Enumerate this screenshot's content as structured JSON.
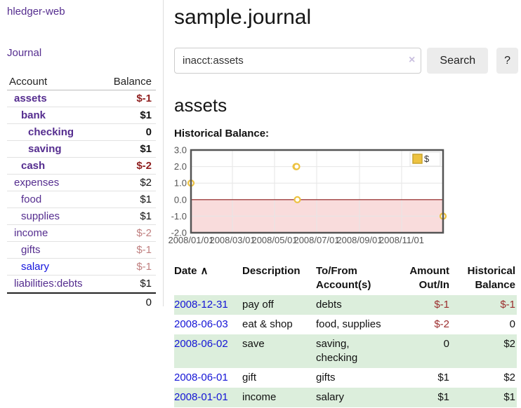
{
  "sidebar": {
    "app_title": "hledger-web",
    "journal_label": "Journal",
    "accounts_table": {
      "headers": {
        "account": "Account",
        "balance": "Balance"
      },
      "rows": [
        {
          "name": "assets",
          "balance": "$-1",
          "level": 1,
          "bold": true,
          "balance_style": "neg-dark",
          "link": "purple"
        },
        {
          "name": "bank",
          "balance": "$1",
          "level": 2,
          "bold": true,
          "balance_style": "pos",
          "link": "purple"
        },
        {
          "name": "checking",
          "balance": "0",
          "level": 3,
          "bold": true,
          "balance_style": "pos",
          "link": "purple"
        },
        {
          "name": "saving",
          "balance": "$1",
          "level": 3,
          "bold": true,
          "balance_style": "pos",
          "link": "purple"
        },
        {
          "name": "cash",
          "balance": "$-2",
          "level": 2,
          "bold": true,
          "balance_style": "neg-dark",
          "link": "purple"
        },
        {
          "name": "expenses",
          "balance": "$2",
          "level": 1,
          "bold": false,
          "balance_style": "pos",
          "link": "purple"
        },
        {
          "name": "food",
          "balance": "$1",
          "level": 2,
          "bold": false,
          "balance_style": "pos",
          "link": "purple"
        },
        {
          "name": "supplies",
          "balance": "$1",
          "level": 2,
          "bold": false,
          "balance_style": "pos",
          "link": "purple"
        },
        {
          "name": "income",
          "balance": "$-2",
          "level": 1,
          "bold": false,
          "balance_style": "neg-light",
          "link": "purple"
        },
        {
          "name": "gifts",
          "balance": "$-1",
          "level": 2,
          "bold": false,
          "balance_style": "neg-light",
          "link": "purple"
        },
        {
          "name": "salary",
          "balance": "$-1",
          "level": 2,
          "bold": false,
          "balance_style": "neg-light",
          "link": "blue"
        },
        {
          "name": "liabilities:debts",
          "balance": "$1",
          "level": 1,
          "bold": false,
          "balance_style": "pos",
          "link": "purple"
        }
      ],
      "total": "0"
    }
  },
  "main": {
    "title": "sample.journal",
    "search": {
      "value": "inacct:assets",
      "clear_icon": "×",
      "button_label": "Search",
      "help_label": "?"
    },
    "account_heading": "assets",
    "chart_heading": "Historical Balance:"
  },
  "chart_data": {
    "type": "line",
    "step": true,
    "title": "Historical Balance:",
    "legend": "$",
    "legend_position": "top-right",
    "grid": true,
    "ylim": [
      -2,
      3
    ],
    "x_range": [
      "2008-01-01",
      "2008-12-31"
    ],
    "y_ticks": [
      "3.0",
      "2.0",
      "1.0",
      "0.0",
      "-1.0",
      "-2.0"
    ],
    "x_ticks": [
      "2008/01/01",
      "2008/03/01",
      "2008/05/01",
      "2008/07/01",
      "2008/09/01",
      "2008/11/01"
    ],
    "series": [
      {
        "name": "$",
        "points": [
          [
            "2008-01-01",
            1
          ],
          [
            "2008-06-01",
            2
          ],
          [
            "2008-06-02",
            2
          ],
          [
            "2008-06-03",
            0
          ],
          [
            "2008-12-31",
            -1
          ]
        ]
      }
    ],
    "colors": {
      "line": "#edc240",
      "marker_fill": "#ffffff",
      "negative_region": "#f9dcdc",
      "zero_line": "#8b1a1a",
      "grid": "#e6e6e6",
      "border": "#545454",
      "tick_text": "#545454",
      "legend_box_border": "#e2e2e2",
      "legend_swatch_border": "#c9a42e"
    }
  },
  "register_table": {
    "headers": {
      "date": "Date",
      "sort_icon": "∧",
      "description": "Description",
      "accounts": "To/From Account(s)",
      "amount": "Amount Out/In",
      "balance": "Historical Balance"
    },
    "rows": [
      {
        "date": "2008-12-31",
        "description": "pay off",
        "accounts": "debts",
        "amount": "$-1",
        "balance": "$-1",
        "shaded": true
      },
      {
        "date": "2008-06-03",
        "description": "eat & shop",
        "accounts": "food, supplies",
        "amount": "$-2",
        "balance": "0",
        "shaded": false
      },
      {
        "date": "2008-06-02",
        "description": "save",
        "accounts": "saving, checking",
        "amount": "0",
        "balance": "$2",
        "shaded": true
      },
      {
        "date": "2008-06-01",
        "description": "gift",
        "accounts": "gifts",
        "amount": "$1",
        "balance": "$2",
        "shaded": false
      },
      {
        "date": "2008-01-01",
        "description": "income",
        "accounts": "salary",
        "amount": "$1",
        "balance": "$1",
        "shaded": true
      }
    ]
  },
  "colors": {
    "link_purple": "#552d8f",
    "link_blue": "#1414dd",
    "negative_dark": "#8f1f1f",
    "negative_light": "#c08080",
    "table_negative": "#9b2d2d",
    "row_green": "#dceedc",
    "button_bg": "#ececec"
  }
}
